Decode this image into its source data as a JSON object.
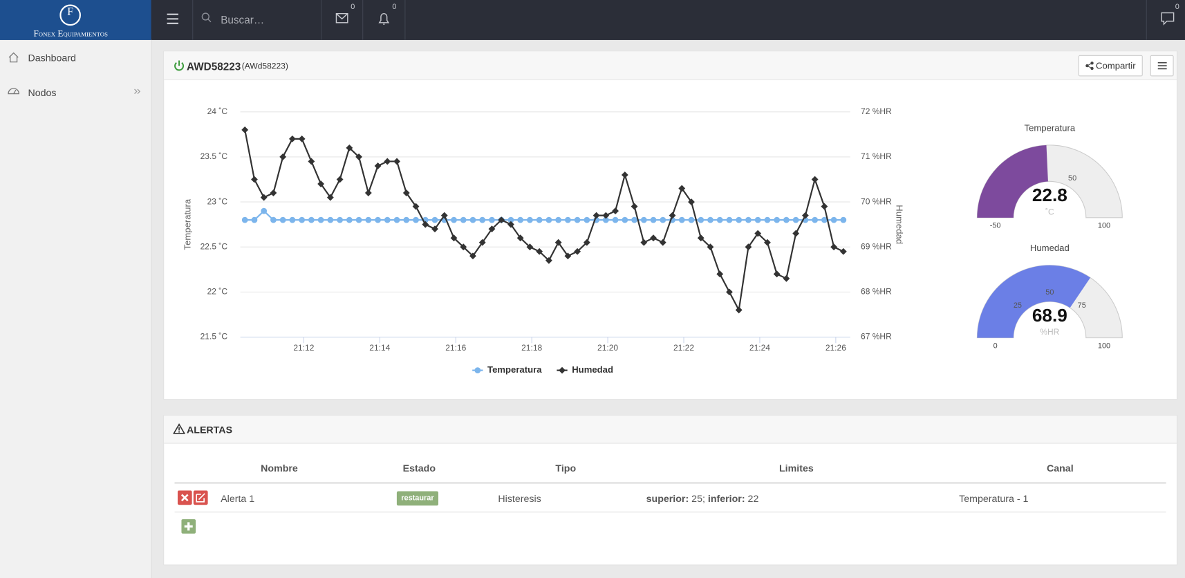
{
  "header": {
    "brand_initial": "F",
    "brand": "Fonex Equipamientos",
    "search_placeholder": "Buscar…",
    "messages_count": 0,
    "notifications_count": 0,
    "chat_count": 0
  },
  "sidebar": {
    "items": [
      "Dashboard",
      "Nodos"
    ]
  },
  "device_panel": {
    "title": "AWD58223",
    "subtitle": "(AWd58223)",
    "share_button": "Compartir"
  },
  "chart_data": {
    "type": "line",
    "x": [
      10.45,
      10.7,
      10.95,
      11.2,
      11.45,
      11.7,
      11.95,
      12.2,
      12.45,
      12.7,
      12.95,
      13.2,
      13.45,
      13.7,
      13.95,
      14.2,
      14.45,
      14.7,
      14.95,
      15.2,
      15.45,
      15.7,
      15.95,
      16.2,
      16.45,
      16.7,
      16.95,
      17.2,
      17.45,
      17.7,
      17.95,
      18.2,
      18.45,
      18.7,
      18.95,
      19.2,
      19.45,
      19.7,
      19.95,
      20.2,
      20.45,
      20.7,
      20.95,
      21.2,
      21.45,
      21.7,
      21.95,
      22.2,
      22.45,
      22.7,
      22.95,
      23.2,
      23.45,
      23.7,
      23.95,
      24.2,
      24.45,
      24.7,
      24.95,
      25.2,
      25.45,
      25.7,
      25.95,
      26.2
    ],
    "xlim": [
      10.33,
      26.38
    ],
    "xticks": [
      {
        "value": 12,
        "label": "21:12"
      },
      {
        "value": 14,
        "label": "21:14"
      },
      {
        "value": 16,
        "label": "21:16"
      },
      {
        "value": 18,
        "label": "21:18"
      },
      {
        "value": 20,
        "label": "21:20"
      },
      {
        "value": 22,
        "label": "21:22"
      },
      {
        "value": 24,
        "label": "21:24"
      },
      {
        "value": 26,
        "label": "21:26"
      }
    ],
    "ylim": [
      21.5,
      24
    ],
    "yticks": [
      {
        "value": 21.5,
        "label": "21.5 ˚C"
      },
      {
        "value": 22,
        "label": "22 ˚C"
      },
      {
        "value": 22.5,
        "label": "22.5 ˚C"
      },
      {
        "value": 23,
        "label": "23 ˚C"
      },
      {
        "value": 23.5,
        "label": "23.5 ˚C"
      },
      {
        "value": 24,
        "label": "24 ˚C"
      }
    ],
    "y2lim": [
      67,
      72
    ],
    "y2ticks": [
      {
        "value": 67,
        "label": "67 %HR"
      },
      {
        "value": 68,
        "label": "68 %HR"
      },
      {
        "value": 69,
        "label": "69 %HR"
      },
      {
        "value": 70,
        "label": "70 %HR"
      },
      {
        "value": 71,
        "label": "71 %HR"
      },
      {
        "value": 72,
        "label": "72 %HR"
      }
    ],
    "y_label": "Temperatura",
    "y2_label": "Humedad",
    "grid": true,
    "legend": "bottom",
    "series": [
      {
        "name": "Temperatura",
        "color": "#7cb5ec",
        "marker": "circle",
        "values": [
          22.8,
          22.8,
          22.9,
          22.8,
          22.8,
          22.8,
          22.8,
          22.8,
          22.8,
          22.8,
          22.8,
          22.8,
          22.8,
          22.8,
          22.8,
          22.8,
          22.8,
          22.8,
          22.8,
          22.8,
          22.8,
          22.8,
          22.8,
          22.8,
          22.8,
          22.8,
          22.8,
          22.8,
          22.8,
          22.8,
          22.8,
          22.8,
          22.8,
          22.8,
          22.8,
          22.8,
          22.8,
          22.8,
          22.8,
          22.8,
          22.8,
          22.8,
          22.8,
          22.8,
          22.8,
          22.8,
          22.8,
          22.8,
          22.8,
          22.8,
          22.8,
          22.8,
          22.8,
          22.8,
          22.8,
          22.8,
          22.8,
          22.8,
          22.8,
          22.8,
          22.8,
          22.8,
          22.8,
          22.8
        ]
      },
      {
        "name": "Humedad",
        "color": "#333333",
        "marker": "diamond",
        "axis": "y2",
        "values": [
          71.6,
          70.5,
          70.1,
          70.2,
          71.0,
          71.4,
          71.4,
          70.9,
          70.4,
          70.1,
          70.5,
          71.2,
          71.0,
          70.2,
          70.8,
          70.9,
          70.9,
          70.2,
          69.9,
          69.5,
          69.4,
          69.7,
          69.2,
          69.0,
          68.8,
          69.1,
          69.4,
          69.6,
          69.5,
          69.2,
          69.0,
          68.9,
          68.7,
          69.1,
          68.8,
          68.9,
          69.1,
          69.7,
          69.7,
          69.8,
          70.6,
          69.9,
          69.1,
          69.2,
          69.1,
          69.7,
          70.3,
          70.0,
          69.2,
          69.0,
          68.4,
          68.0,
          67.6,
          69.0,
          69.3,
          69.1,
          68.4,
          68.3,
          69.3,
          69.7,
          70.5,
          69.9,
          69.0,
          68.9
        ]
      }
    ]
  },
  "gauges": [
    {
      "title": "Temperatura",
      "value": 22.8,
      "unit": "˚C",
      "min": -50,
      "max": 100,
      "ticks": [
        50
      ],
      "color": "#7d4a9d"
    },
    {
      "title": "Humedad",
      "value": 68.9,
      "unit": "%HR",
      "min": 0,
      "max": 100,
      "ticks": [
        25,
        50,
        75
      ],
      "color": "#6b7fe6"
    }
  ],
  "alerts": {
    "title": "ALERTAS",
    "columns": [
      "Nombre",
      "Estado",
      "Tipo",
      "Limites",
      "Canal"
    ],
    "rows": [
      {
        "nombre": "Alerta 1",
        "estado": "restaurar",
        "tipo": "Histeresis",
        "limites": [
          {
            "label": "superior:",
            "value": "25;"
          },
          {
            "label": "inferior:",
            "value": "22"
          }
        ],
        "canal": "Temperatura - 1"
      }
    ]
  }
}
